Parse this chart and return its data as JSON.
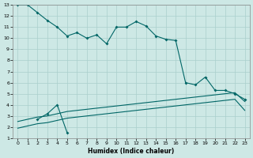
{
  "xlabel": "Humidex (Indice chaleur)",
  "background_color": "#cde8e5",
  "grid_color": "#aacfcc",
  "line_color": "#006666",
  "xlim": [
    -0.5,
    23.5
  ],
  "ylim": [
    1,
    13
  ],
  "xticks": [
    0,
    1,
    2,
    3,
    4,
    5,
    6,
    7,
    8,
    9,
    10,
    11,
    12,
    13,
    14,
    15,
    16,
    17,
    18,
    19,
    20,
    21,
    22,
    23
  ],
  "yticks": [
    1,
    2,
    3,
    4,
    5,
    6,
    7,
    8,
    9,
    10,
    11,
    12,
    13
  ],
  "curve1_x": [
    0,
    1,
    2,
    3,
    4,
    5,
    6,
    7,
    8,
    9,
    10,
    11,
    12,
    13,
    14,
    15,
    16,
    17,
    18,
    19,
    20,
    21,
    22,
    23
  ],
  "curve1_y": [
    13.0,
    13.0,
    12.3,
    11.6,
    11.0,
    10.2,
    10.5,
    10.0,
    10.3,
    9.5,
    11.0,
    11.0,
    11.5,
    11.1,
    10.2,
    9.9,
    9.8,
    6.0,
    5.8,
    6.5,
    5.3,
    5.3,
    5.0,
    4.5
  ],
  "curve2_x": [
    2,
    3,
    4,
    5
  ],
  "curve2_y": [
    2.7,
    3.2,
    4.0,
    1.5
  ],
  "diag1_x": [
    0,
    1,
    2,
    3,
    4,
    5,
    6,
    7,
    8,
    9,
    10,
    11,
    12,
    13,
    14,
    15,
    16,
    17,
    18,
    19,
    20,
    21,
    22,
    23
  ],
  "diag1_y": [
    2.5,
    2.7,
    2.9,
    3.0,
    3.2,
    3.4,
    3.5,
    3.6,
    3.7,
    3.8,
    3.9,
    4.0,
    4.1,
    4.2,
    4.3,
    4.4,
    4.5,
    4.6,
    4.7,
    4.8,
    4.9,
    5.0,
    5.1,
    4.3
  ],
  "diag2_x": [
    0,
    1,
    2,
    3,
    4,
    5,
    6,
    7,
    8,
    9,
    10,
    11,
    12,
    13,
    14,
    15,
    16,
    17,
    18,
    19,
    20,
    21,
    22,
    23
  ],
  "diag2_y": [
    1.9,
    2.1,
    2.3,
    2.4,
    2.6,
    2.8,
    2.9,
    3.0,
    3.1,
    3.2,
    3.3,
    3.4,
    3.5,
    3.6,
    3.7,
    3.8,
    3.9,
    4.0,
    4.1,
    4.2,
    4.3,
    4.4,
    4.5,
    3.5
  ]
}
